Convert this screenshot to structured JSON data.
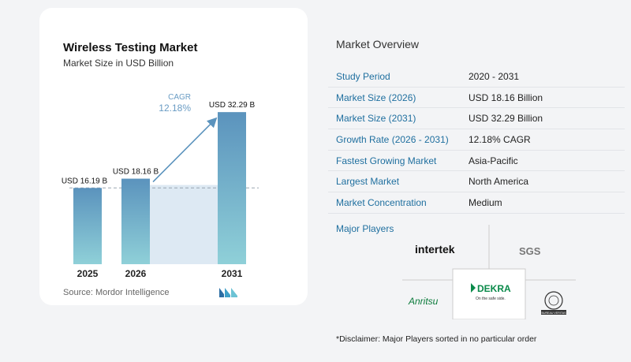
{
  "chart_data": {
    "type": "bar",
    "title": "Wireless Testing Market",
    "subtitle": "Market Size in USD Billion",
    "categories": [
      "2025",
      "2026",
      "2031"
    ],
    "values": [
      16.19,
      18.16,
      32.29
    ],
    "data_labels": [
      "USD 16.19 B",
      "USD 18.16 B",
      "USD 32.29 B"
    ],
    "cagr_label": "CAGR",
    "cagr_value": "12.18%",
    "ylim": [
      0,
      36
    ],
    "colors": {
      "bar_top": "#5b93bd",
      "bar_bottom": "#8fd0d8",
      "band": "#dde9f3",
      "arrow": "#5b93bd",
      "cagr": "#6a9cc4"
    }
  },
  "source": "Source:  Mordor Intelligence",
  "overview": {
    "title": "Market Overview",
    "rows": [
      {
        "label": "Study Period",
        "value": "2020 - 2031"
      },
      {
        "label": "Market Size (2026)",
        "value": "USD 18.16 Billion"
      },
      {
        "label": "Market Size (2031)",
        "value": "USD 32.29 Billion"
      },
      {
        "label": "Growth Rate (2026 - 2031)",
        "value": "12.18% CAGR"
      },
      {
        "label": "Fastest Growing Market",
        "value": "Asia-Pacific"
      },
      {
        "label": "Largest Market",
        "value": "North America"
      },
      {
        "label": "Market Concentration",
        "value": "Medium"
      }
    ],
    "players_title": "Major Players",
    "players": [
      "intertek",
      "SGS",
      "DEKRA",
      "On the safe side.",
      "Anritsu",
      "BUREAU VERITAS"
    ]
  },
  "disclaimer": "*Disclaimer: Major Players sorted in no particular order"
}
